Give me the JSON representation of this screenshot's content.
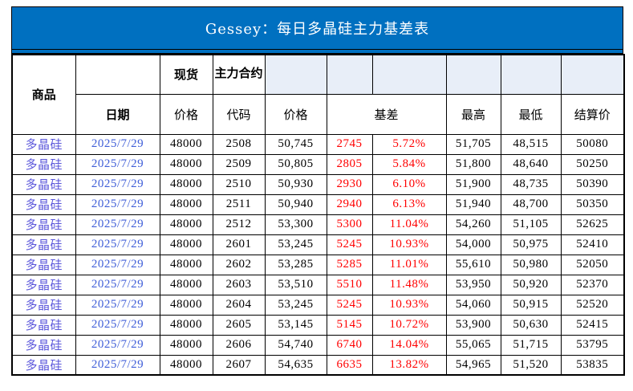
{
  "title": "Gessey：每日多晶硅主力基差表",
  "colors": {
    "banner_bg": "#0070C0",
    "banner_text": "#FFFFFF",
    "header_tint": "#E8EEF8",
    "border": "#000000",
    "body_text": "#000000",
    "product_text": "#5B57DB",
    "date_text": "#3F5ED8",
    "basis_text": "#FF0000"
  },
  "header": {
    "product": "商品",
    "blank": "",
    "spot": "现货",
    "main_contract": "主力合约",
    "date": "日期",
    "spot_price": "价格",
    "code": "代码",
    "fut_price": "价格",
    "basis": "基差",
    "high": "最高",
    "low": "最低",
    "settle": "结算价"
  },
  "chart_data": {
    "type": "table",
    "title": "Gessey：每日多晶硅主力基差表",
    "columns": [
      "商品",
      "日期",
      "现货价格",
      "主力合约代码",
      "价格",
      "基差",
      "基差%",
      "最高",
      "最低",
      "结算价"
    ],
    "rows": [
      [
        "多晶硅",
        "2025/7/29",
        "48000",
        "2508",
        "50,745",
        "2745",
        "5.72%",
        "51,705",
        "48,515",
        "50080"
      ],
      [
        "多晶硅",
        "2025/7/29",
        "48000",
        "2509",
        "50,805",
        "2805",
        "5.84%",
        "51,800",
        "48,640",
        "50250"
      ],
      [
        "多晶硅",
        "2025/7/29",
        "48000",
        "2510",
        "50,930",
        "2930",
        "6.10%",
        "51,900",
        "48,735",
        "50390"
      ],
      [
        "多晶硅",
        "2025/7/29",
        "48000",
        "2511",
        "50,940",
        "2940",
        "6.13%",
        "51,940",
        "48,700",
        "50350"
      ],
      [
        "多晶硅",
        "2025/7/29",
        "48000",
        "2512",
        "53,300",
        "5300",
        "11.04%",
        "54,260",
        "51,105",
        "52625"
      ],
      [
        "多晶硅",
        "2025/7/29",
        "48000",
        "2601",
        "53,245",
        "5245",
        "10.93%",
        "54,000",
        "50,975",
        "52410"
      ],
      [
        "多晶硅",
        "2025/7/29",
        "48000",
        "2602",
        "53,285",
        "5285",
        "11.01%",
        "55,610",
        "50,980",
        "52050"
      ],
      [
        "多晶硅",
        "2025/7/29",
        "48000",
        "2603",
        "53,510",
        "5510",
        "11.48%",
        "53,950",
        "50,920",
        "52370"
      ],
      [
        "多晶硅",
        "2025/7/29",
        "48000",
        "2604",
        "53,245",
        "5245",
        "10.93%",
        "54,060",
        "50,915",
        "52520"
      ],
      [
        "多晶硅",
        "2025/7/29",
        "48000",
        "2605",
        "53,145",
        "5145",
        "10.72%",
        "53,900",
        "50,630",
        "52415"
      ],
      [
        "多晶硅",
        "2025/7/29",
        "48000",
        "2606",
        "54,740",
        "6740",
        "14.04%",
        "55,065",
        "51,715",
        "53795"
      ],
      [
        "多晶硅",
        "2025/7/29",
        "48000",
        "2607",
        "54,635",
        "6635",
        "13.82%",
        "54,965",
        "51,520",
        "53835"
      ]
    ]
  }
}
